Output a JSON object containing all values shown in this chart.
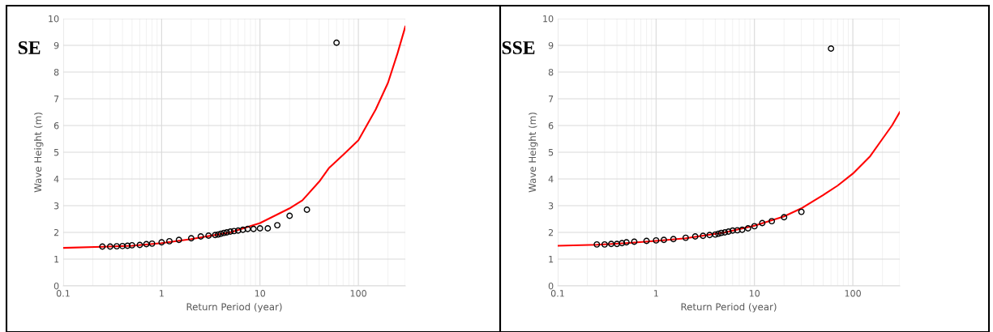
{
  "chart_data": [
    {
      "type": "scatter",
      "title": "SE",
      "xlabel": "Return Period (year)",
      "ylabel": "Wave Height (m)",
      "log": "x",
      "grid": true,
      "xlim": [
        0.1,
        300
      ],
      "xticks": [
        0.1,
        1,
        10,
        100
      ],
      "ylim": [
        0,
        10
      ],
      "yticks": [
        0,
        1,
        2,
        3,
        4,
        5,
        6,
        7,
        8,
        9,
        10
      ],
      "series": [
        {
          "color": "#000000",
          "marker": "circle",
          "x": [
            60,
            30,
            20,
            15,
            12,
            10,
            8.6,
            7.5,
            6.7,
            6,
            5.45,
            5,
            4.6,
            4.3,
            4,
            3.75,
            3.5,
            3,
            2.5,
            2,
            1.5,
            1.2,
            1,
            0.8,
            0.7,
            0.6,
            0.5,
            0.45,
            0.4,
            0.35,
            0.3,
            0.25
          ],
          "values": [
            9.1,
            2.85,
            2.62,
            2.27,
            2.15,
            2.15,
            2.13,
            2.13,
            2.1,
            2.07,
            2.05,
            2.03,
            2.0,
            1.98,
            1.95,
            1.92,
            1.9,
            1.88,
            1.85,
            1.78,
            1.72,
            1.67,
            1.63,
            1.58,
            1.56,
            1.53,
            1.52,
            1.5,
            1.49,
            1.48,
            1.47,
            1.47
          ]
        },
        {
          "type": "line",
          "color": "#ff0000",
          "marker": "none",
          "line_style": "solid",
          "x": [
            0.1,
            0.25,
            0.5,
            1,
            2,
            5,
            10,
            20,
            27,
            40,
            50,
            70,
            100,
            150,
            200,
            250,
            300
          ],
          "values": [
            1.42,
            1.46,
            1.5,
            1.6,
            1.75,
            2.0,
            2.35,
            2.9,
            3.2,
            3.9,
            4.4,
            4.9,
            5.45,
            6.6,
            7.6,
            8.7,
            9.7
          ]
        }
      ]
    },
    {
      "type": "scatter",
      "title": "SSE",
      "xlabel": "Return Period (year)",
      "ylabel": "Wave Height (m)",
      "log": "x",
      "grid": true,
      "xlim": [
        0.1,
        300
      ],
      "xticks": [
        0.1,
        1,
        10,
        100
      ],
      "ylim": [
        0,
        10
      ],
      "yticks": [
        0,
        1,
        2,
        3,
        4,
        5,
        6,
        7,
        8,
        9,
        10
      ],
      "series": [
        {
          "color": "#000000",
          "marker": "circle",
          "x": [
            60,
            30,
            20,
            15,
            12,
            10,
            8.6,
            7.5,
            6.7,
            6,
            5.45,
            5,
            4.6,
            4.3,
            4,
            3.5,
            3,
            2.5,
            2,
            1.5,
            1.2,
            1,
            0.8,
            0.6,
            0.5,
            0.45,
            0.4,
            0.35,
            0.3,
            0.25
          ],
          "values": [
            8.88,
            2.77,
            2.57,
            2.42,
            2.35,
            2.23,
            2.15,
            2.1,
            2.08,
            2.07,
            2.03,
            2.0,
            1.98,
            1.95,
            1.92,
            1.9,
            1.87,
            1.85,
            1.8,
            1.75,
            1.72,
            1.7,
            1.68,
            1.65,
            1.63,
            1.6,
            1.57,
            1.57,
            1.55,
            1.55
          ]
        },
        {
          "type": "line",
          "color": "#ff0000",
          "marker": "none",
          "line_style": "solid",
          "x": [
            0.1,
            0.25,
            0.5,
            1,
            2,
            5,
            10,
            20,
            30,
            50,
            70,
            100,
            150,
            200,
            250,
            300
          ],
          "values": [
            1.5,
            1.54,
            1.6,
            1.68,
            1.78,
            2.0,
            2.25,
            2.6,
            2.9,
            3.4,
            3.75,
            4.2,
            4.85,
            5.5,
            6.0,
            6.5
          ]
        }
      ]
    }
  ]
}
